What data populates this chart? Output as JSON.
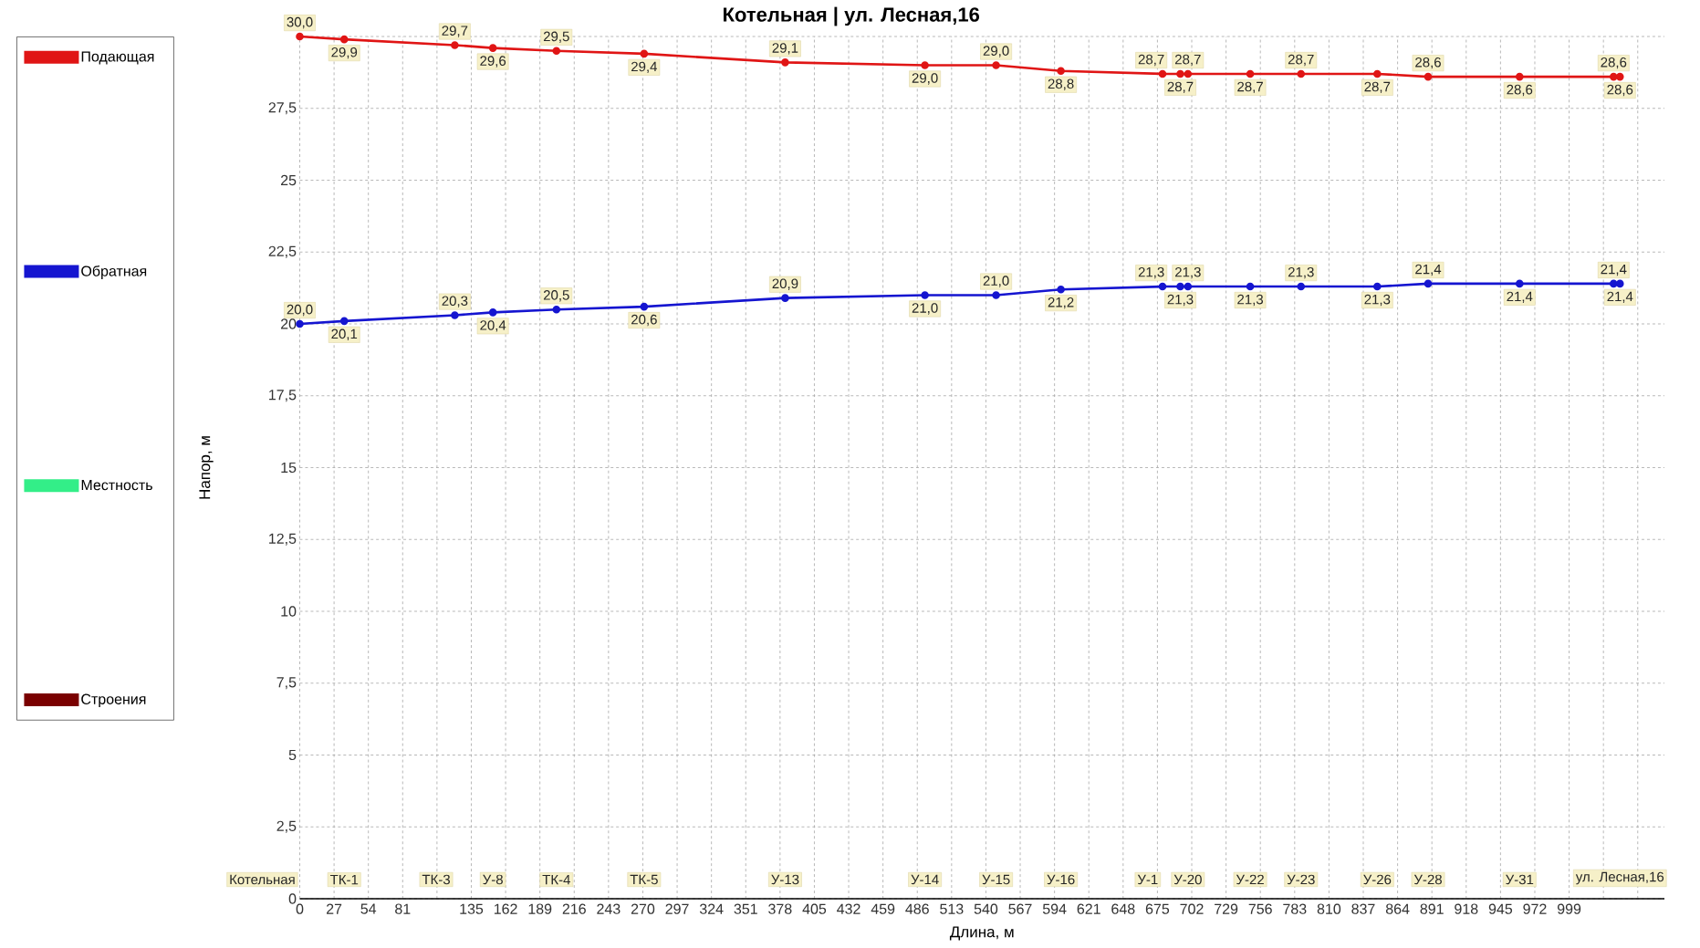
{
  "chart_data": {
    "type": "line",
    "title": "**Котельная | ул. Лесная,16**",
    "xlabel": "Длина, м",
    "ylabel": "Напор, м",
    "x": [
      0,
      35,
      122,
      152,
      202,
      271,
      382,
      492,
      548,
      599,
      679,
      693,
      699,
      748,
      788,
      848,
      888,
      960,
      1034,
      1039
    ],
    "series": [
      {
        "name": "Подающая",
        "color": "#e01515",
        "values": [
          30.0,
          29.9,
          29.7,
          29.6,
          29.5,
          29.4,
          29.1,
          29.0,
          29.0,
          28.8,
          28.7,
          28.7,
          28.7,
          28.7,
          28.7,
          28.7,
          28.6,
          28.6,
          28.6,
          28.6
        ],
        "value_labels": [
          "30,0",
          "29,9",
          "29,7",
          "29,6",
          "29,5",
          "29,4",
          "29,1",
          "29,0",
          "29,0",
          "28,8",
          "28,7",
          "28,7",
          "28,7",
          "28,7",
          "28,7",
          "28,7",
          "28,6",
          "28,6",
          "28,6",
          "28,6"
        ]
      },
      {
        "name": "Обратная",
        "color": "#1515d0",
        "values": [
          20.0,
          20.1,
          20.3,
          20.4,
          20.5,
          20.6,
          20.9,
          21.0,
          21.0,
          21.2,
          21.3,
          21.3,
          21.3,
          21.3,
          21.3,
          21.3,
          21.4,
          21.4,
          21.4,
          21.4
        ],
        "value_labels": [
          "20,0",
          "20,1",
          "20,3",
          "20,4",
          "20,5",
          "20,6",
          "20,9",
          "21,0",
          "21,0",
          "21,2",
          "21,3",
          "21,3",
          "21,3",
          "21,3",
          "21,3",
          "21,3",
          "21,4",
          "21,4",
          "21,4",
          "21,4"
        ]
      },
      {
        "name": "Местность",
        "color": "#33ee88",
        "values": [
          null,
          null,
          null,
          null,
          null,
          null,
          null,
          null,
          null,
          null,
          null,
          null,
          null,
          null,
          null,
          null,
          null,
          null,
          null,
          null
        ]
      },
      {
        "name": "Строения",
        "color": "#7a0000",
        "values": [
          null,
          null,
          null,
          null,
          null,
          null,
          null,
          null,
          null,
          null,
          null,
          null,
          null,
          null,
          null,
          null,
          null,
          null,
          null,
          null
        ]
      }
    ],
    "annotations": [
      "Котельная",
      "ТК-1",
      "ТК-3",
      "У-8",
      "ТК-4",
      "ТК-5",
      "У-13",
      "У-14",
      "У-15",
      "У-16",
      "У-1",
      "У-20",
      "У-22",
      "У-23",
      "У-26",
      "У-28",
      "У-31",
      "ул. Лесная,16"
    ],
    "xlim": [
      0,
      1074
    ],
    "ylim": [
      0,
      30
    ],
    "xticks": [
      0,
      27,
      54,
      81,
      {
        "value": 108,
        "label": null
      },
      135,
      162,
      189,
      216,
      243,
      270,
      297,
      324,
      351,
      378,
      405,
      432,
      459,
      486,
      513,
      540,
      567,
      594,
      621,
      648,
      675,
      702,
      729,
      756,
      783,
      810,
      837,
      864,
      891,
      918,
      945,
      972,
      999,
      {
        "value": 1026,
        "label": null
      },
      {
        "value": 1053,
        "label": null
      }
    ],
    "yticks": [
      0,
      {
        "value": 2.5,
        "label": "2,5"
      },
      5,
      {
        "value": 7.5,
        "label": "7,5"
      },
      10,
      {
        "value": 12.5,
        "label": "12,5"
      },
      15,
      {
        "value": 17.5,
        "label": "17,5"
      },
      20,
      {
        "value": 22.5,
        "label": "22,5"
      },
      25,
      {
        "value": 27.5,
        "label": "27,5"
      },
      {
        "value": 30,
        "label": null
      }
    ],
    "grid": true,
    "legend": "left",
    "marker": "circle",
    "line_style": "solid"
  }
}
